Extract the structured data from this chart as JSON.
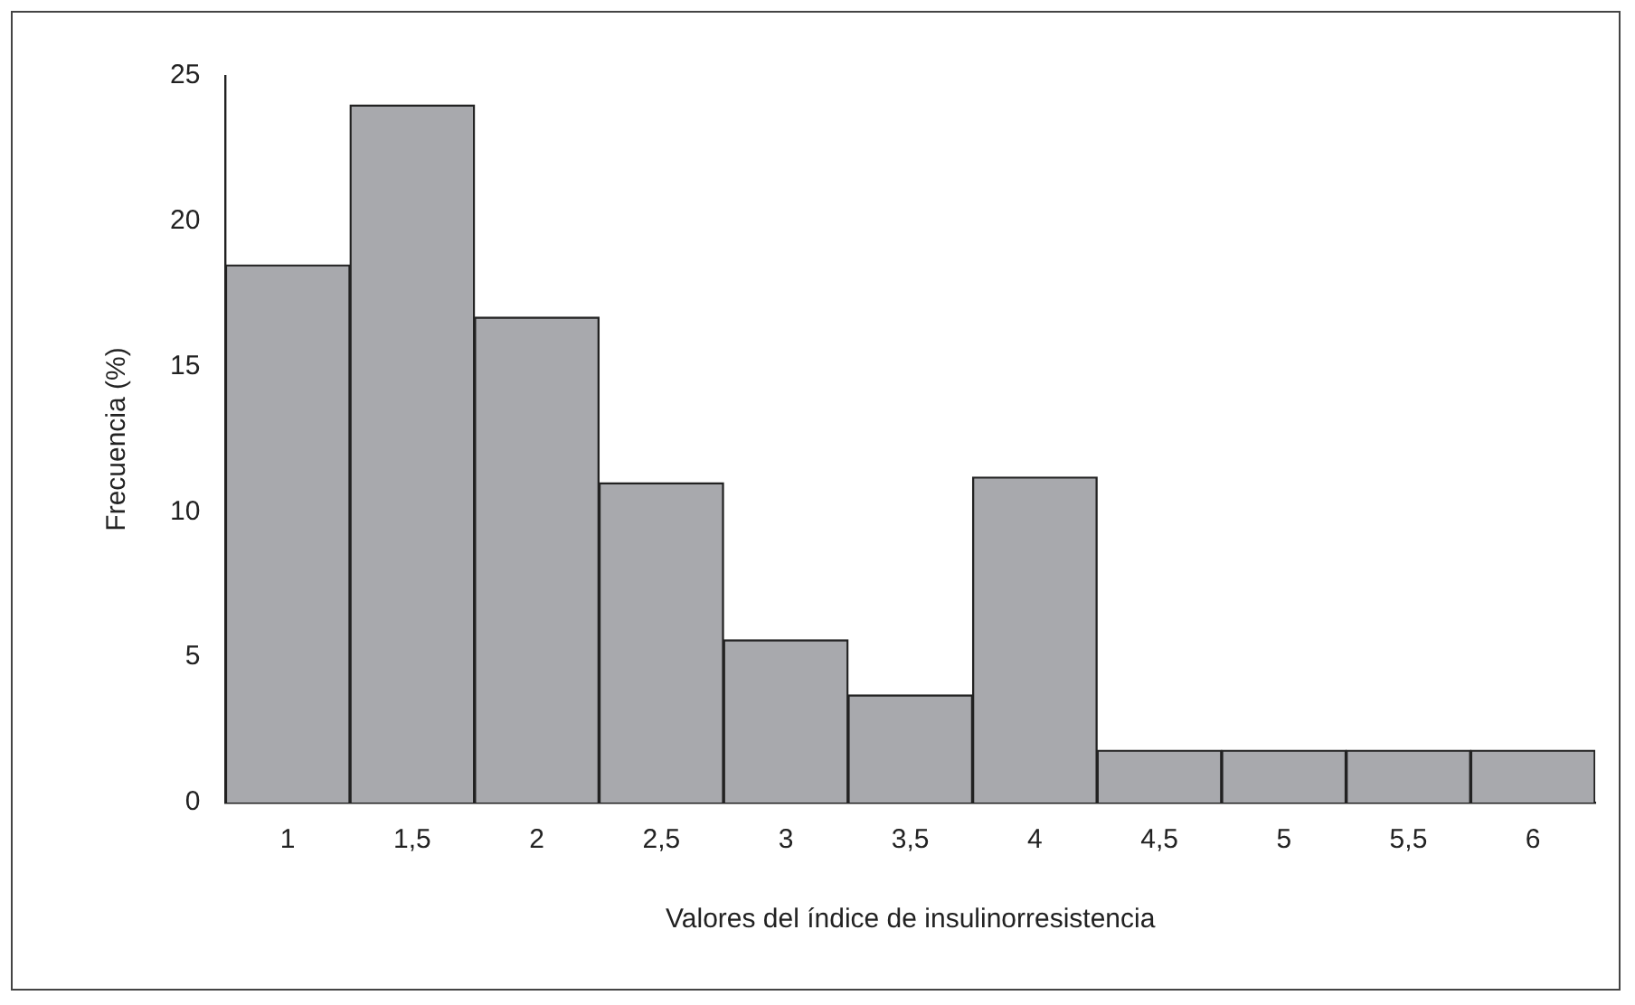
{
  "chart_data": {
    "type": "bar",
    "xlabel": "Valores del índice de insulinorresistencia",
    "ylabel": "Frecuencia (%)",
    "categories": [
      "1",
      "1,5",
      "2",
      "2,5",
      "3",
      "3,5",
      "4",
      "4,5",
      "5",
      "5,5",
      "6"
    ],
    "values": [
      18.5,
      24,
      16.7,
      11,
      5.6,
      3.7,
      11.2,
      1.8,
      1.8,
      1.8,
      1.8
    ],
    "color": "#a8a9ad",
    "ylim": [
      0,
      25
    ],
    "yticks": [
      0,
      5,
      10,
      15,
      20,
      25
    ],
    "grid": false,
    "legend": false
  }
}
